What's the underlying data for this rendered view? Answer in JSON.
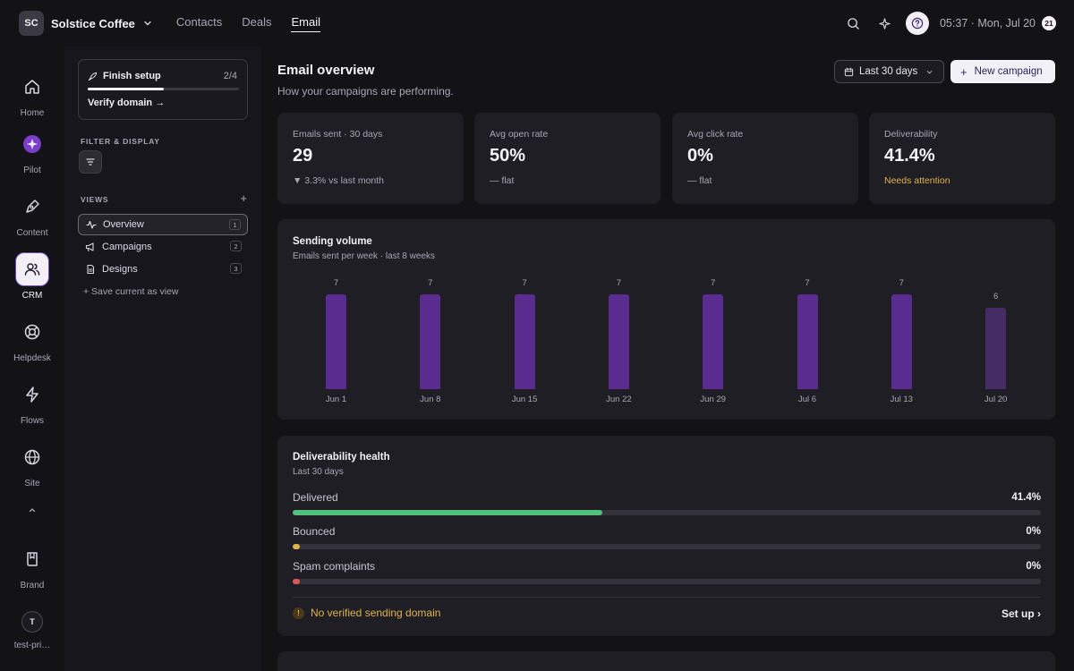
{
  "org": {
    "initials": "SC",
    "name": "Solstice Coffee"
  },
  "topnav": [
    {
      "label": "Contacts"
    },
    {
      "label": "Deals"
    },
    {
      "label": "Email"
    }
  ],
  "header": {
    "time": "05:37 · Mon, Jul 20",
    "notifications": "21"
  },
  "rail": [
    {
      "label": "Home",
      "icon": "home-icon"
    },
    {
      "label": "Pilot",
      "icon": "pilot-icon"
    },
    {
      "label": "Content",
      "icon": "pen-icon"
    },
    {
      "label": "CRM",
      "icon": "users-icon"
    },
    {
      "label": "Helpdesk",
      "icon": "lifebuoy-icon"
    },
    {
      "label": "Flows",
      "icon": "bolt-icon"
    },
    {
      "label": "Site",
      "icon": "globe-icon"
    },
    {
      "label": "Brand",
      "icon": "book-icon"
    },
    {
      "label": "test-pri…",
      "icon": "avatar",
      "initial": "T"
    }
  ],
  "setup": {
    "title": "Finish setup",
    "count": "2/4",
    "progress": 0.5,
    "link": "Verify domain →"
  },
  "panel": {
    "filter_label": "FILTER & DISPLAY",
    "views_label": "VIEWS",
    "views_add": "+",
    "views": [
      {
        "label": "Overview",
        "count": "1"
      },
      {
        "label": "Campaigns",
        "count": "2"
      },
      {
        "label": "Designs",
        "count": "3"
      }
    ],
    "save_view": "+ Save current as view"
  },
  "main": {
    "title": "Email overview",
    "subtitle": "How your campaigns are performing.",
    "date_range": "Last 30 days",
    "new_campaign": "New campaign"
  },
  "stats": [
    {
      "label": "Emails sent · 30 days",
      "value": "29",
      "note": "▼ 3.3% vs last month"
    },
    {
      "label": "Avg open rate",
      "value": "50%",
      "note": "— flat"
    },
    {
      "label": "Avg click rate",
      "value": "0%",
      "note": "— flat"
    },
    {
      "label": "Deliverability",
      "value": "41.4%",
      "note": "Needs attention"
    }
  ],
  "volume": {
    "title": "Sending volume",
    "subtitle": "Emails sent per week · last 8 weeks"
  },
  "chart_data": {
    "type": "bar",
    "categories": [
      "Jun 1",
      "Jun 8",
      "Jun 15",
      "Jun 22",
      "Jun 29",
      "Jul 6",
      "Jul 13",
      "Jul 20"
    ],
    "values": [
      7,
      7,
      7,
      7,
      7,
      7,
      7,
      6
    ],
    "title": "Sending volume",
    "subtitle": "Emails sent per week · last 8 weeks",
    "ylim": [
      0,
      7
    ],
    "grid": false,
    "colors": {
      "bar": "#5b2c8f",
      "current": "#452c64"
    }
  },
  "health": {
    "title": "Deliverability health",
    "subtitle": "Last 30 days",
    "rows": [
      {
        "label": "Delivered",
        "value": "41.4%",
        "fraction": 0.414,
        "color": "#4fc17a"
      },
      {
        "label": "Bounced",
        "value": "0%",
        "fraction": 0,
        "color": "#e0b24e"
      },
      {
        "label": "Spam complaints",
        "value": "0%",
        "fraction": 0,
        "color": "#e05555"
      }
    ],
    "warning": "No verified sending domain",
    "warning_icon": "!",
    "action": "Set up ›"
  }
}
